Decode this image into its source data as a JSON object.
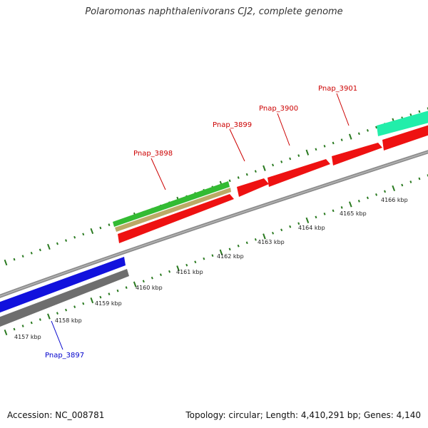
{
  "title": "Polaromonas naphthalenivorans CJ2, complete genome",
  "accession": "Accession: NC_008781",
  "topology": "Topology: circular; Length: 4,410,291 bp; Genes: 4,140",
  "colors": {
    "backbone": "#8c8c8c",
    "tick": "#2a7a20",
    "forward_gene": "#ee1111",
    "reverse_gene": "#1111dd",
    "reverse_gray": "#6e6e6e",
    "green_feature": "#33bb33",
    "tan_feature": "#bbaa66",
    "aqua_feature": "#22eeaa",
    "label_red": "#cc0000",
    "label_blue": "#0000cc"
  },
  "scale_labels": [
    "4157 kbp",
    "4158 kbp",
    "4159 kbp",
    "4160 kbp",
    "4161 kbp",
    "4162 kbp",
    "4163 kbp",
    "4164 kbp",
    "4165 kbp",
    "4166 kbp"
  ],
  "gene_labels": {
    "pnap_3897": "Pnap_3897",
    "pnap_3898": "Pnap_3898",
    "pnap_3899": "Pnap_3899",
    "pnap_3900": "Pnap_3900",
    "pnap_3901": "Pnap_3901"
  }
}
